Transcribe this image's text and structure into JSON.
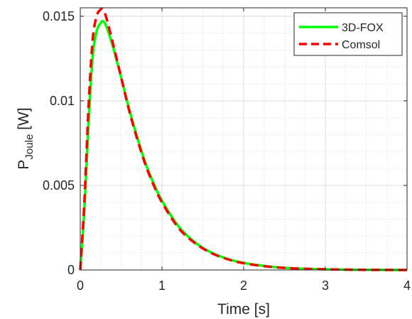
{
  "chart_data": {
    "type": "line",
    "title": "",
    "xlabel": "Time [s]",
    "ylabel": {
      "main": "P",
      "subscript": "Joule",
      "unit": " [W]"
    },
    "xlim": [
      0,
      4
    ],
    "ylim": [
      0,
      0.0155
    ],
    "xticks": [
      0,
      1,
      2,
      3,
      4
    ],
    "xtick_labels": [
      "0",
      "1",
      "2",
      "3",
      "4"
    ],
    "yticks": [
      0,
      0.005,
      0.01,
      0.015
    ],
    "ytick_labels": [
      "0",
      "0.005",
      "0.01",
      "0.015"
    ],
    "grid": true,
    "minor_grid": true,
    "legend_position": "top-right",
    "series": [
      {
        "name": "3D-FOX",
        "color": "#00ff00",
        "style": "solid",
        "x": [
          0,
          0.05,
          0.1,
          0.15,
          0.2,
          0.25,
          0.28,
          0.32,
          0.4,
          0.5,
          0.6,
          0.7,
          0.8,
          0.9,
          1.0,
          1.2,
          1.4,
          1.6,
          1.8,
          2.0,
          2.3,
          2.6,
          3.0,
          3.5,
          4.0
        ],
        "y": [
          0,
          0.0035,
          0.0085,
          0.0125,
          0.0141,
          0.0146,
          0.0147,
          0.0144,
          0.0132,
          0.0114,
          0.0095,
          0.0078,
          0.0063,
          0.0051,
          0.0041,
          0.0026,
          0.00165,
          0.00104,
          0.00066,
          0.00042,
          0.00021,
          0.0001,
          4e-05,
          1e-05,
          0
        ]
      },
      {
        "name": "Comsol",
        "color": "#ff0000",
        "style": "dashed",
        "x": [
          0,
          0.05,
          0.1,
          0.15,
          0.2,
          0.25,
          0.28,
          0.32,
          0.4,
          0.5,
          0.6,
          0.7,
          0.8,
          0.9,
          1.0,
          1.2,
          1.4,
          1.6,
          1.8,
          2.0,
          2.3,
          2.6,
          3.0,
          3.5,
          4.0
        ],
        "y": [
          0,
          0.004,
          0.0095,
          0.0135,
          0.015,
          0.0154,
          0.0154,
          0.0149,
          0.0134,
          0.0114,
          0.0094,
          0.0077,
          0.0062,
          0.005,
          0.004,
          0.0025,
          0.0016,
          0.00101,
          0.00064,
          0.0004,
          0.0002,
          0.0001,
          4e-05,
          1e-05,
          0
        ]
      }
    ]
  }
}
